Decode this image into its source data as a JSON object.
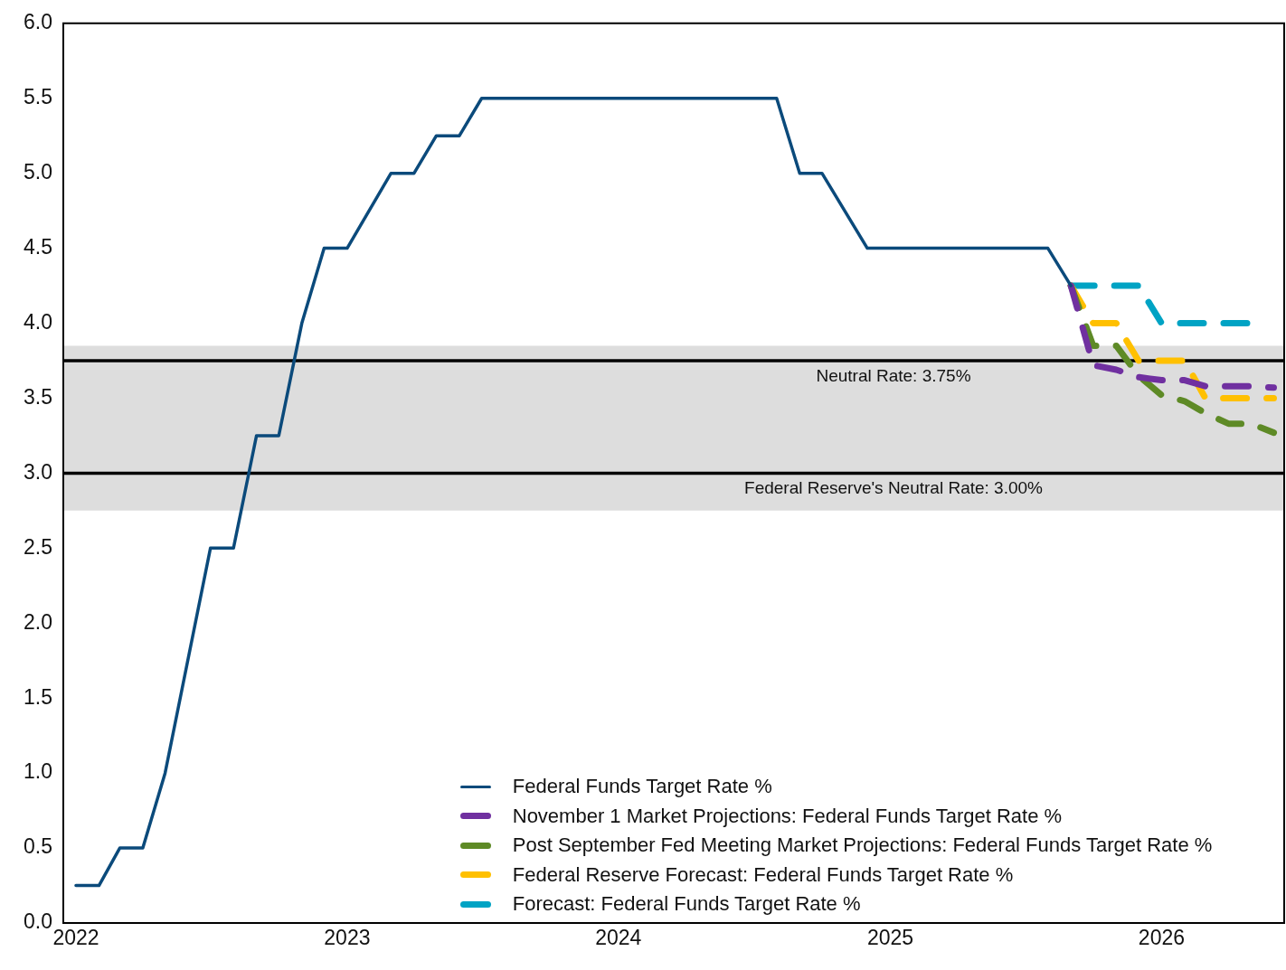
{
  "chart_data": {
    "type": "line",
    "xlim": [
      "2021-12-15",
      "2026-06-15"
    ],
    "xticks": [
      {
        "value": "2022-01-01",
        "label": "2022"
      },
      {
        "value": "2023-01-01",
        "label": "2023"
      },
      {
        "value": "2024-01-01",
        "label": "2024"
      },
      {
        "value": "2025-01-01",
        "label": "2025"
      },
      {
        "value": "2026-01-01",
        "label": "2026"
      }
    ],
    "ylim": [
      0,
      6
    ],
    "yticks": [
      {
        "value": 0,
        "label": "0.0"
      },
      {
        "value": 0.5,
        "label": "0.5"
      },
      {
        "value": 1,
        "label": "1.0"
      },
      {
        "value": 1.5,
        "label": "1.5"
      },
      {
        "value": 2,
        "label": "2.0"
      },
      {
        "value": 2.5,
        "label": "2.5"
      },
      {
        "value": 3,
        "label": "3.0"
      },
      {
        "value": 3.5,
        "label": "3.5"
      },
      {
        "value": 4,
        "label": "4.0"
      },
      {
        "value": 4.5,
        "label": "4.5"
      },
      {
        "value": 5,
        "label": "5.0"
      },
      {
        "value": 5.5,
        "label": "5.5"
      },
      {
        "value": 6,
        "label": "6.0"
      }
    ],
    "grid": false,
    "legend": "bottom",
    "marker": "none",
    "series": [
      {
        "name": "Federal Funds Target Rate %",
        "color": "#0b4a7b",
        "line_style": "solid",
        "x": [
          "2022-01",
          "2022-02",
          "2022-03",
          "2022-04",
          "2022-05",
          "2022-07",
          "2022-08",
          "2022-09",
          "2022-10",
          "2022-11",
          "2022-12",
          "2023-01",
          "2023-03",
          "2023-04",
          "2023-05",
          "2023-06",
          "2023-07",
          "2024-08",
          "2024-09",
          "2024-10",
          "2024-12",
          "2025-08",
          "2025-09"
        ],
        "values": [
          0.25,
          0.25,
          0.5,
          0.5,
          1.0,
          2.5,
          2.5,
          3.25,
          3.25,
          4.0,
          4.5,
          4.5,
          5.0,
          5.0,
          5.25,
          5.25,
          5.5,
          5.5,
          5.0,
          5.0,
          4.5,
          4.5,
          4.25
        ]
      },
      {
        "name": "November 1 Market Projections: Federal Funds Target Rate %",
        "color": "#7030a0",
        "line_style": "dashed",
        "x": [
          "2025-09",
          "2025-10",
          "2025-11",
          "2025-12",
          "2026-01",
          "2026-02",
          "2026-03",
          "2026-04",
          "2026-05",
          "2026-06"
        ],
        "values": [
          4.25,
          3.72,
          3.69,
          3.64,
          3.62,
          3.62,
          3.58,
          3.58,
          3.58,
          3.57
        ]
      },
      {
        "name": "Post September Fed Meeting Market Projections: Federal Funds Target Rate %",
        "color": "#5e8a26",
        "line_style": "dashed",
        "x": [
          "2025-09",
          "2025-10",
          "2025-11",
          "2025-12",
          "2026-01",
          "2026-02",
          "2026-03",
          "2026-04",
          "2026-05",
          "2026-06"
        ],
        "values": [
          4.25,
          3.85,
          3.85,
          3.65,
          3.52,
          3.48,
          3.4,
          3.33,
          3.33,
          3.27
        ]
      },
      {
        "name": "Federal Reserve Forecast: Federal Funds Target Rate %",
        "color": "#ffc000",
        "line_style": "dashed",
        "x": [
          "2025-09",
          "2025-10",
          "2025-11",
          "2025-12",
          "2026-01",
          "2026-02",
          "2026-03",
          "2026-06"
        ],
        "values": [
          4.25,
          4.0,
          4.0,
          3.75,
          3.75,
          3.75,
          3.5,
          3.5
        ]
      },
      {
        "name": "Forecast: Federal Funds Target Rate %",
        "color": "#00a3c4",
        "line_style": "dashed",
        "x": [
          "2025-09",
          "2025-12",
          "2026-01",
          "2026-05"
        ],
        "values": [
          4.25,
          4.25,
          4.0,
          4.0
        ]
      }
    ],
    "bands": [
      {
        "axis": "y",
        "from": 2.75,
        "to": 3.85,
        "color": "#dddddd"
      }
    ],
    "ref_lines": [
      {
        "axis": "y",
        "value": 3.75,
        "label": "Neutral Rate: 3.75%",
        "color": "#000000"
      },
      {
        "axis": "y",
        "value": 3.0,
        "label": "Federal Reserve's Neutral Rate: 3.00%",
        "color": "#000000"
      }
    ]
  }
}
